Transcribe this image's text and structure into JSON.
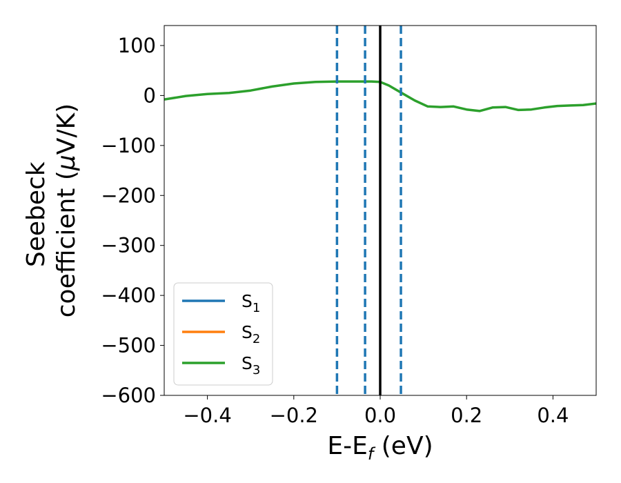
{
  "chart_data": {
    "type": "line",
    "xlabel": "E-E",
    "xlabel_sub": "f",
    "xlabel_unit": " (eV)",
    "ylabel_line1": "Seebeck",
    "ylabel_line2_pre": "coefficient  (",
    "ylabel_line2_mu": "μ",
    "ylabel_line2_post": "V/K)",
    "xlim": [
      -0.5,
      0.5
    ],
    "ylim": [
      -600,
      140
    ],
    "x_ticks": [
      -0.4,
      -0.2,
      0.0,
      0.2,
      0.4
    ],
    "x_tick_labels": [
      "−0.4",
      "−0.2",
      "0.0",
      "0.2",
      "0.4"
    ],
    "y_ticks": [
      100,
      0,
      -100,
      -200,
      -300,
      -400,
      -500,
      -600
    ],
    "y_tick_labels": [
      "100",
      "0",
      "−100",
      "−200",
      "−300",
      "−400",
      "−500",
      "−600"
    ],
    "legend_position": "lower-left",
    "series": [
      {
        "name": "S",
        "sub": "1",
        "color": "#1f77b4",
        "x": [],
        "y": []
      },
      {
        "name": "S",
        "sub": "2",
        "color": "#ff7f0e",
        "x": [],
        "y": []
      },
      {
        "name": "S",
        "sub": "3",
        "color": "#2ca02c",
        "x": [
          -0.5,
          -0.45,
          -0.4,
          -0.35,
          -0.3,
          -0.25,
          -0.2,
          -0.15,
          -0.1,
          -0.05,
          -0.02,
          0.0,
          0.02,
          0.05,
          0.08,
          0.11,
          0.14,
          0.17,
          0.2,
          0.23,
          0.26,
          0.29,
          0.32,
          0.35,
          0.38,
          0.41,
          0.44,
          0.47,
          0.5
        ],
        "y": [
          -8,
          -1,
          3,
          5,
          10,
          18,
          24,
          27,
          28,
          28,
          28,
          27,
          20,
          5,
          -10,
          -22,
          -23,
          -22,
          -28,
          -31,
          -24,
          -23,
          -29,
          -28,
          -24,
          -21,
          -20,
          -19,
          -16
        ]
      }
    ],
    "vlines": [
      {
        "x": -0.1,
        "style": "dashed",
        "color": "#1f77b4"
      },
      {
        "x": -0.035,
        "style": "dashed",
        "color": "#1f77b4"
      },
      {
        "x": 0.0,
        "style": "solid",
        "color": "#000000"
      },
      {
        "x": 0.048,
        "style": "dashed",
        "color": "#1f77b4"
      }
    ]
  }
}
